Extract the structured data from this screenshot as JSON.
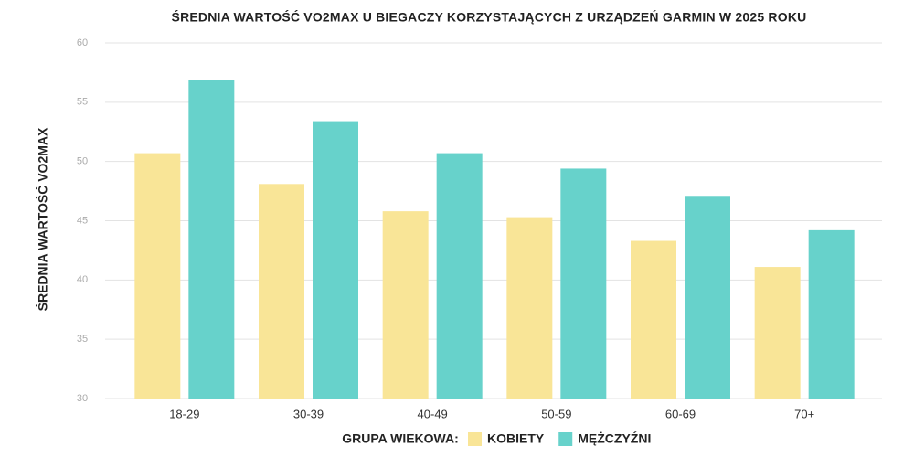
{
  "chart_data": {
    "type": "bar",
    "title": "ŚREDNIA WARTOŚĆ VO2MAX U BIEGACZY KORZYSTAJĄCYCH Z URZĄDZEŃ GARMIN W 2025 ROKU",
    "y_label": "ŚREDNIA WARTOŚĆ VO2MAX",
    "legend_title": "GRUPA WIEKOWA:",
    "categories": [
      "18-29",
      "30-39",
      "40-49",
      "50-59",
      "60-69",
      "70+"
    ],
    "series": [
      {
        "name": "KOBIETY",
        "color": "#f9e597",
        "values": [
          50.7,
          48.1,
          45.8,
          45.3,
          43.3,
          41.1
        ]
      },
      {
        "name": "MĘŻCZYŹNI",
        "color": "#67d2cb",
        "values": [
          56.9,
          53.4,
          50.7,
          49.4,
          47.1,
          44.2
        ]
      }
    ],
    "ylim": [
      30,
      60
    ],
    "yticks": [
      30,
      35,
      40,
      45,
      50,
      55,
      60
    ],
    "grid": true
  }
}
